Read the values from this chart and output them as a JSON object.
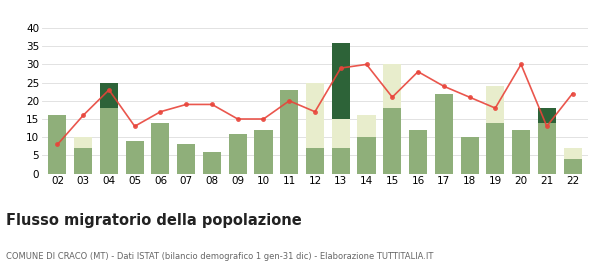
{
  "years": [
    "02",
    "03",
    "04",
    "05",
    "06",
    "07",
    "08",
    "09",
    "10",
    "11",
    "12",
    "13",
    "14",
    "15",
    "16",
    "17",
    "18",
    "19",
    "20",
    "21",
    "22"
  ],
  "iscritti_altri_comuni": [
    16,
    7,
    18,
    9,
    14,
    8,
    6,
    11,
    12,
    23,
    7,
    7,
    10,
    18,
    12,
    22,
    10,
    14,
    12,
    14,
    4
  ],
  "iscritti_estero": [
    0,
    3,
    0,
    0,
    0,
    0,
    0,
    0,
    0,
    0,
    18,
    8,
    6,
    12,
    0,
    0,
    0,
    10,
    0,
    0,
    3
  ],
  "iscritti_altri": [
    0,
    0,
    7,
    0,
    0,
    0,
    0,
    0,
    0,
    0,
    0,
    21,
    0,
    0,
    0,
    0,
    0,
    0,
    0,
    4,
    0
  ],
  "cancellati": [
    8,
    16,
    23,
    13,
    17,
    19,
    19,
    15,
    15,
    20,
    17,
    29,
    30,
    21,
    28,
    24,
    21,
    18,
    30,
    13,
    22
  ],
  "color_altri_comuni": "#8faf7a",
  "color_estero": "#e8edcc",
  "color_altri": "#2d6338",
  "color_cancellati": "#e8443a",
  "title": "Flusso migratorio della popolazione",
  "subtitle": "COMUNE DI CRACO (MT) - Dati ISTAT (bilancio demografico 1 gen-31 dic) - Elaborazione TUTTITALIA.IT",
  "ylim": [
    0,
    40
  ],
  "yticks": [
    0,
    5,
    10,
    15,
    20,
    25,
    30,
    35,
    40
  ],
  "bg_color": "#ffffff",
  "grid_color": "#dddddd"
}
